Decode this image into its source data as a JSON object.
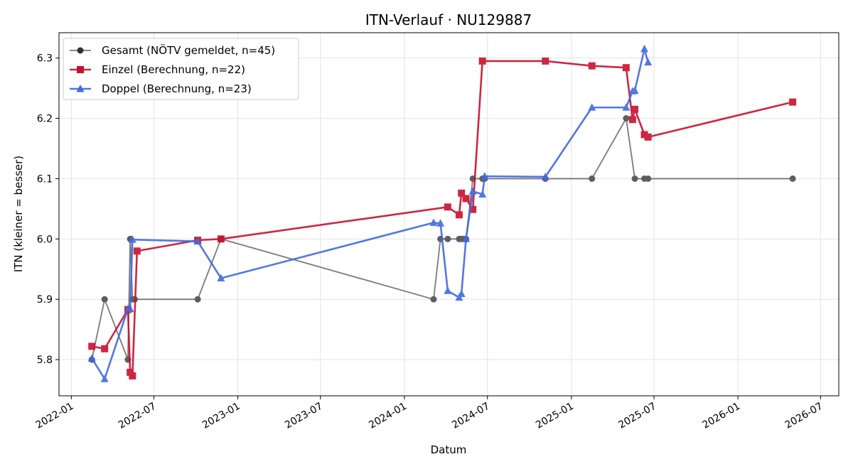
{
  "chart_data": {
    "type": "line",
    "title": "ITN-Verlauf · NU129887",
    "xlabel": "Datum",
    "ylabel": "ITN  (kleiner = besser)",
    "xlim": [
      "2021-12-05",
      "2026-08-10"
    ],
    "ylim": [
      5.74,
      6.342
    ],
    "grid": true,
    "legend_position": "upper-left",
    "x_ticks": [
      "2022-01",
      "2022-07",
      "2023-01",
      "2023-07",
      "2024-01",
      "2024-07",
      "2025-01",
      "2025-07",
      "2026-01",
      "2026-07"
    ],
    "x_tick_dates": [
      "2022-01-01",
      "2022-07-01",
      "2023-01-01",
      "2023-07-01",
      "2024-01-01",
      "2024-07-01",
      "2025-01-01",
      "2025-07-01",
      "2026-01-01",
      "2026-07-01"
    ],
    "y_ticks": [
      "5.8",
      "5.9",
      "6.0",
      "6.1",
      "6.2",
      "6.3"
    ],
    "series": [
      {
        "name": "Gesamt (NÖTV gemeldet, n=45)",
        "color": "#555555",
        "marker": "circle",
        "points": [
          [
            "2022-02-15",
            5.8
          ],
          [
            "2022-03-15",
            5.9
          ],
          [
            "2022-05-05",
            5.8
          ],
          [
            "2022-05-10",
            6.0
          ],
          [
            "2022-05-15",
            5.9
          ],
          [
            "2022-05-20",
            5.9
          ],
          [
            "2022-10-05",
            5.9
          ],
          [
            "2022-11-25",
            6.0
          ],
          [
            "2024-03-05",
            5.9
          ],
          [
            "2024-03-20",
            6.0
          ],
          [
            "2024-04-05",
            6.0
          ],
          [
            "2024-04-30",
            6.0
          ],
          [
            "2024-05-05",
            6.0
          ],
          [
            "2024-05-10",
            6.0
          ],
          [
            "2024-05-15",
            6.0
          ],
          [
            "2024-05-30",
            6.1
          ],
          [
            "2024-06-20",
            6.1
          ],
          [
            "2024-06-25",
            6.1
          ],
          [
            "2024-11-05",
            6.1
          ],
          [
            "2025-02-15",
            6.1
          ],
          [
            "2025-05-01",
            6.2
          ],
          [
            "2025-05-20",
            6.1
          ],
          [
            "2025-06-10",
            6.1
          ],
          [
            "2025-06-18",
            6.1
          ],
          [
            "2026-05-01",
            6.1
          ]
        ]
      },
      {
        "name": "Einzel (Berechnung, n=22)",
        "color": "#c8102e",
        "marker": "square",
        "points": [
          [
            "2022-02-15",
            5.822
          ],
          [
            "2022-03-15",
            5.818
          ],
          [
            "2022-05-05",
            5.883
          ],
          [
            "2022-05-10",
            5.779
          ],
          [
            "2022-05-15",
            5.773
          ],
          [
            "2022-05-25",
            5.98
          ],
          [
            "2022-10-05",
            5.998
          ],
          [
            "2022-11-25",
            6.0
          ],
          [
            "2024-04-05",
            6.053
          ],
          [
            "2024-04-30",
            6.04
          ],
          [
            "2024-05-05",
            6.076
          ],
          [
            "2024-05-15",
            6.067
          ],
          [
            "2024-05-30",
            6.049
          ],
          [
            "2024-06-20",
            6.295
          ],
          [
            "2024-11-05",
            6.295
          ],
          [
            "2025-02-15",
            6.287
          ],
          [
            "2025-05-01",
            6.284
          ],
          [
            "2025-05-15",
            6.198
          ],
          [
            "2025-05-20",
            6.215
          ],
          [
            "2025-06-10",
            6.173
          ],
          [
            "2025-06-18",
            6.169
          ],
          [
            "2026-05-01",
            6.227
          ]
        ]
      },
      {
        "name": "Doppel (Berechnung, n=23)",
        "color": "#4169e1",
        "marker": "triangle",
        "points": [
          [
            "2022-02-15",
            5.802
          ],
          [
            "2022-03-15",
            5.768
          ],
          [
            "2022-05-05",
            5.884
          ],
          [
            "2022-05-10",
            5.884
          ],
          [
            "2022-05-15",
            5.999
          ],
          [
            "2022-10-05",
            5.996
          ],
          [
            "2022-11-25",
            5.935
          ],
          [
            "2024-03-05",
            6.027
          ],
          [
            "2024-03-20",
            6.026
          ],
          [
            "2024-04-05",
            5.914
          ],
          [
            "2024-04-30",
            5.903
          ],
          [
            "2024-05-05",
            5.909
          ],
          [
            "2024-05-15",
            6.0
          ],
          [
            "2024-05-30",
            6.079
          ],
          [
            "2024-06-20",
            6.074
          ],
          [
            "2024-06-25",
            6.104
          ],
          [
            "2024-11-05",
            6.103
          ],
          [
            "2025-02-15",
            6.218
          ],
          [
            "2025-05-01",
            6.218
          ],
          [
            "2025-05-15",
            6.245
          ],
          [
            "2025-05-20",
            6.246
          ],
          [
            "2025-06-10",
            6.315
          ],
          [
            "2025-06-18",
            6.293
          ]
        ]
      }
    ]
  }
}
